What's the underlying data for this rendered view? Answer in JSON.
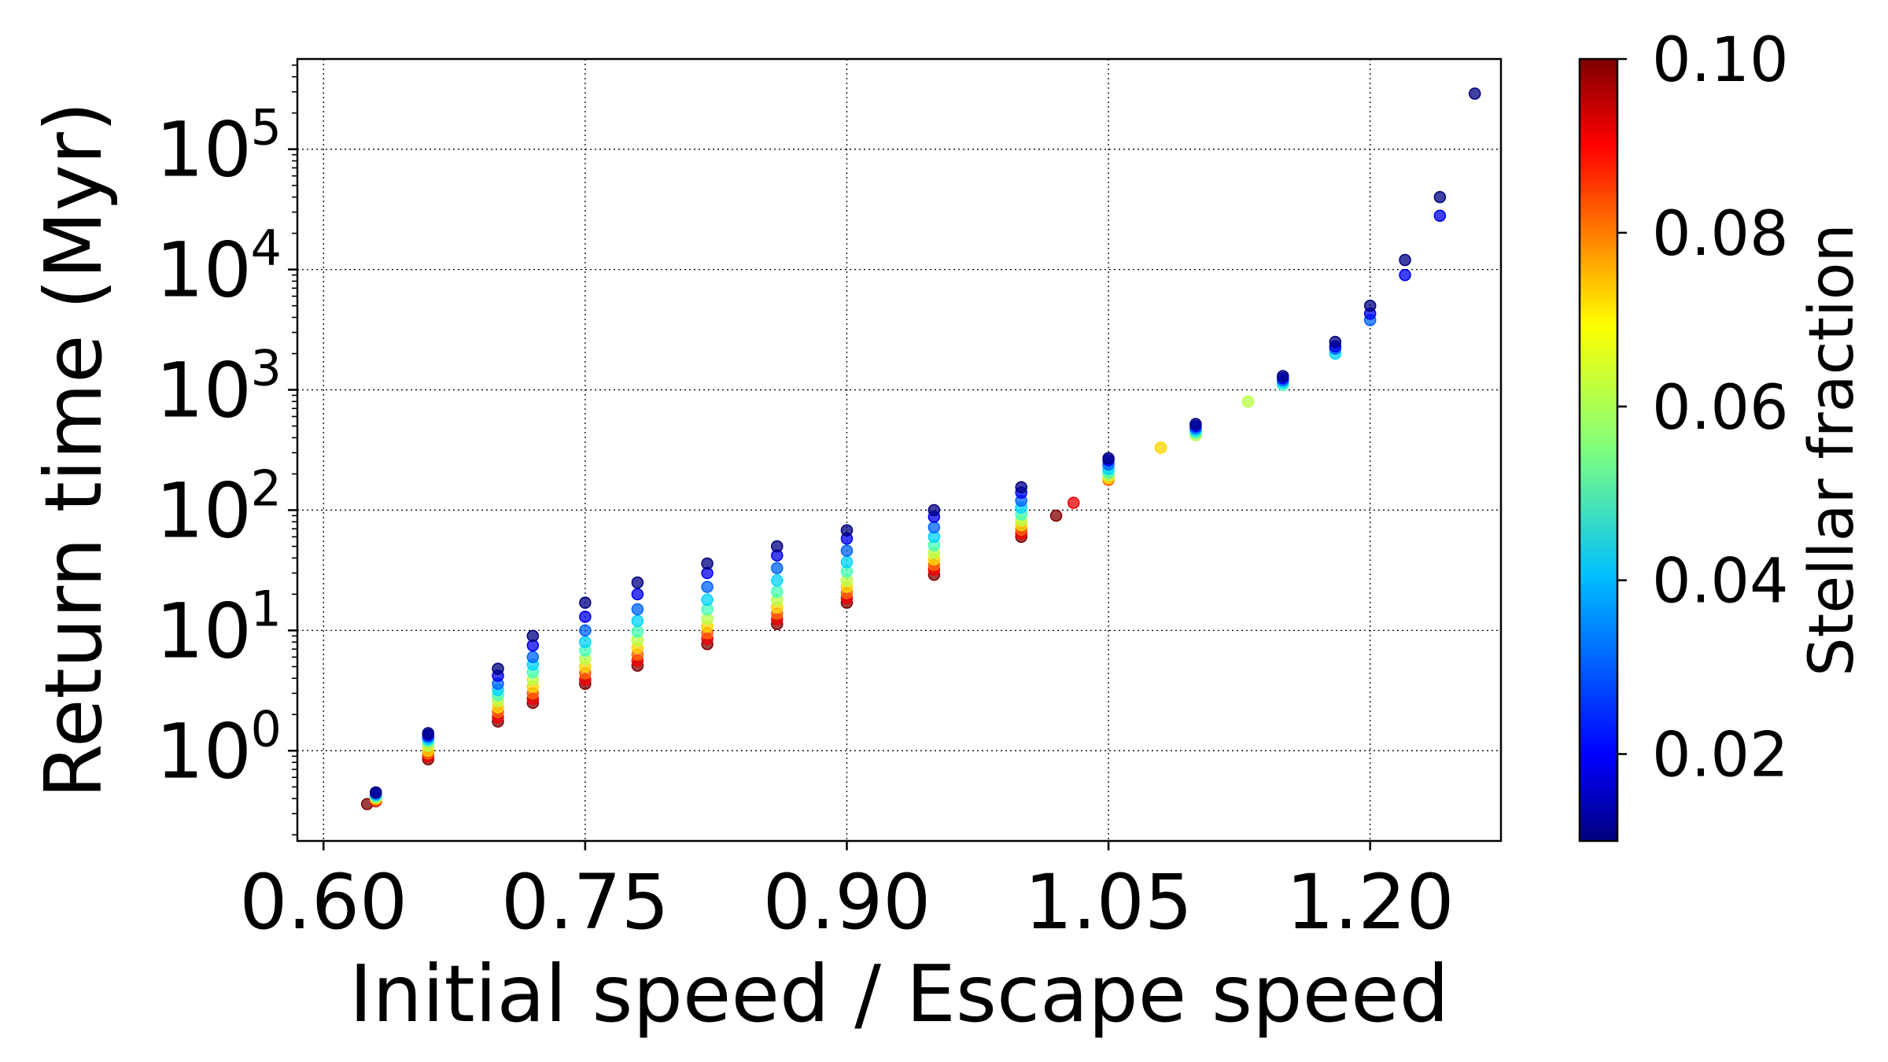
{
  "chart_data": {
    "type": "scatter",
    "title": "",
    "xlabel": "Initial speed / Escape speed",
    "ylabel": "Return time (Myr)",
    "xlim": [
      0.585,
      1.275
    ],
    "ylim_log10": [
      -0.75,
      5.75
    ],
    "y_scale": "log",
    "grid": true,
    "grid_style": "dotted",
    "x_ticks": [
      0.6,
      0.75,
      0.9,
      1.05,
      1.2
    ],
    "x_tick_labels": [
      "0.60",
      "0.75",
      "0.90",
      "1.05",
      "1.20"
    ],
    "y_ticks": [
      1,
      10,
      100,
      1000,
      10000,
      100000
    ],
    "y_tick_labels": [
      {
        "base": "10",
        "exp": "0"
      },
      {
        "base": "10",
        "exp": "1"
      },
      {
        "base": "10",
        "exp": "2"
      },
      {
        "base": "10",
        "exp": "3"
      },
      {
        "base": "10",
        "exp": "4"
      },
      {
        "base": "10",
        "exp": "5"
      }
    ],
    "colorbar": {
      "label": "Stellar fraction",
      "colormap": "jet",
      "range": [
        0.01,
        0.1
      ],
      "ticks": [
        0.02,
        0.04,
        0.06,
        0.08,
        0.1
      ],
      "tick_labels": [
        "0.02",
        "0.04",
        "0.06",
        "0.08",
        "0.10"
      ]
    },
    "series": [
      {
        "stellar_fraction": 0.01,
        "x": [
          0.63,
          0.66,
          0.7,
          0.72,
          0.75,
          0.78,
          0.82,
          0.86,
          0.9,
          0.95,
          1.0,
          1.05,
          1.1,
          1.15,
          1.18,
          1.2,
          1.22,
          1.24,
          1.26
        ],
        "y": [
          0.45,
          1.4,
          4.8,
          9,
          17,
          25,
          36,
          50,
          68,
          100,
          155,
          270,
          520,
          1300,
          2500,
          5000,
          12000,
          40000,
          290000
        ]
      },
      {
        "stellar_fraction": 0.02,
        "x": [
          0.63,
          0.66,
          0.7,
          0.72,
          0.75,
          0.78,
          0.82,
          0.86,
          0.9,
          0.95,
          1.0,
          1.05,
          1.1,
          1.15,
          1.18,
          1.2,
          1.22,
          1.24
        ],
        "y": [
          0.45,
          1.35,
          4.2,
          7.5,
          13,
          20,
          30,
          42,
          58,
          88,
          140,
          260,
          500,
          1250,
          2300,
          4300,
          9000,
          28000
        ]
      },
      {
        "stellar_fraction": 0.03,
        "x": [
          0.63,
          0.66,
          0.7,
          0.72,
          0.75,
          0.78,
          0.82,
          0.86,
          0.9,
          0.95,
          1.0,
          1.05,
          1.1,
          1.15,
          1.18,
          1.2
        ],
        "y": [
          0.44,
          1.3,
          3.6,
          6,
          10,
          15,
          23,
          33,
          46,
          72,
          120,
          240,
          480,
          1200,
          2200,
          3800
        ]
      },
      {
        "stellar_fraction": 0.04,
        "x": [
          0.63,
          0.66,
          0.7,
          0.72,
          0.75,
          0.78,
          0.82,
          0.86,
          0.9,
          0.95,
          1.0,
          1.05,
          1.1,
          1.15,
          1.18
        ],
        "y": [
          0.43,
          1.25,
          3.2,
          5.2,
          8,
          12,
          18,
          26,
          37,
          60,
          105,
          220,
          460,
          1150,
          2000
        ]
      },
      {
        "stellar_fraction": 0.05,
        "x": [
          0.63,
          0.66,
          0.7,
          0.72,
          0.75,
          0.78,
          0.82,
          0.86,
          0.9,
          0.95,
          1.0,
          1.05,
          1.1,
          1.15
        ],
        "y": [
          0.42,
          1.2,
          2.9,
          4.5,
          6.8,
          9.8,
          15,
          21,
          31,
          51,
          92,
          205,
          440,
          1100
        ]
      },
      {
        "stellar_fraction": 0.06,
        "x": [
          0.63,
          0.66,
          0.7,
          0.72,
          0.75,
          0.78,
          0.82,
          0.86,
          0.9,
          0.95,
          1.0,
          1.05,
          1.1,
          1.13
        ],
        "y": [
          0.41,
          1.1,
          2.6,
          3.9,
          5.8,
          8.3,
          12.5,
          18,
          26,
          44,
          82,
          195,
          420,
          800
        ]
      },
      {
        "stellar_fraction": 0.07,
        "x": [
          0.63,
          0.66,
          0.7,
          0.72,
          0.75,
          0.78,
          0.82,
          0.86,
          0.9,
          0.95,
          1.0,
          1.05,
          1.08
        ],
        "y": [
          0.4,
          1.0,
          2.3,
          3.4,
          5.0,
          7.2,
          10.8,
          15.5,
          23,
          39,
          75,
          185,
          330
        ]
      },
      {
        "stellar_fraction": 0.08,
        "x": [
          0.63,
          0.66,
          0.7,
          0.72,
          0.75,
          0.78,
          0.82,
          0.86,
          0.9,
          0.95,
          1.0,
          1.05
        ],
        "y": [
          0.39,
          0.95,
          2.1,
          3.0,
          4.4,
          6.3,
          9.5,
          13.8,
          20.5,
          35,
          69,
          178
        ]
      },
      {
        "stellar_fraction": 0.09,
        "x": [
          0.63,
          0.66,
          0.7,
          0.72,
          0.75,
          0.78,
          0.82,
          0.86,
          0.9,
          0.95,
          1.0,
          1.03
        ],
        "y": [
          0.38,
          0.9,
          1.9,
          2.7,
          3.9,
          5.6,
          8.5,
          12.4,
          18.5,
          32,
          64,
          115
        ]
      },
      {
        "stellar_fraction": 0.1,
        "x": [
          0.625,
          0.66,
          0.7,
          0.72,
          0.75,
          0.78,
          0.82,
          0.86,
          0.9,
          0.95,
          1.0,
          1.02
        ],
        "y": [
          0.36,
          0.85,
          1.75,
          2.5,
          3.6,
          5.1,
          7.7,
          11.3,
          17,
          29,
          60,
          90
        ]
      }
    ]
  }
}
